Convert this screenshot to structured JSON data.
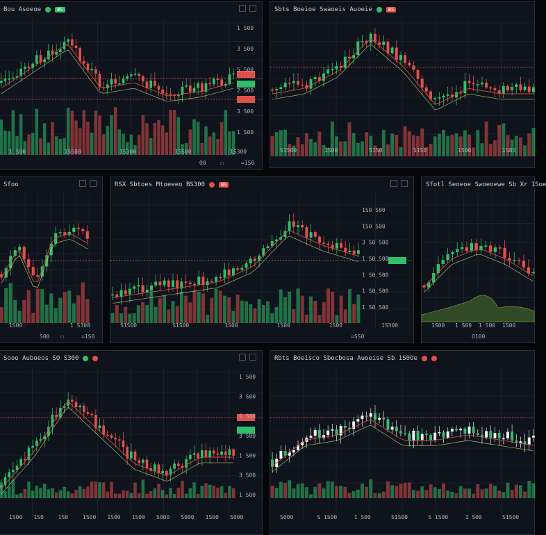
{
  "colors": {
    "up": "#2fbf6a",
    "down": "#e0504a",
    "bg": "#0f131b",
    "grid": "#232936",
    "wick_white": "#e6e8ec"
  },
  "panels": [
    {
      "id": "p1",
      "title": "Bou Asoeoe",
      "xlabels": [
        "1 S00",
        "15S00",
        "1S300",
        "15S00",
        "1S300"
      ],
      "ylabels": [
        "1 S00",
        "3 S00",
        "5 S00",
        "2 S00",
        "3 S00",
        "1 S00"
      ],
      "foot": [
        "O0",
        "☐",
        "=1S0"
      ]
    },
    {
      "id": "p2",
      "title": "Sbts  Boeioe Swaoeis Auoeie",
      "xlabels": [
        "S1S00",
        "1S00",
        "S1S0",
        "S1S0",
        "1S00",
        "1S80"
      ],
      "ylabels": [],
      "foot": []
    },
    {
      "id": "p3",
      "title": "Sfoo",
      "xlabels": [
        "1S00",
        "1 S300"
      ],
      "ylabels": [],
      "foot": [
        "S00",
        "☐",
        "=1S0"
      ]
    },
    {
      "id": "p4",
      "title": "RSX  Sbtoes Mtoeeeo BS300",
      "xlabels": [
        "S1S00",
        "S1S00",
        "1S00",
        "1S00",
        "1S00",
        "1S300"
      ],
      "ylabels": [
        "1S0 S00",
        "1S0 S00",
        "3 S0 S00",
        "1 S0 S00",
        "1 S0 S00",
        "1 S0 S00",
        "1 S0 S00"
      ],
      "foot": [
        "=SS0"
      ]
    },
    {
      "id": "p5",
      "title": "Sfotl  Seoeoe Swoeoewe  Sb  Xr 1Soe",
      "xlabels": [
        "1S00",
        "1 S00",
        "1 S00",
        "1S00"
      ],
      "ylabels": [],
      "foot": [
        "O100"
      ]
    },
    {
      "id": "p6",
      "title": "Sooe Auboeos  SO S300",
      "xlabels": [
        "1S00",
        "1S0",
        "1S0",
        "1S00",
        "1S00",
        "1S00",
        "S000",
        "S000",
        "1S00",
        "S000"
      ],
      "ylabels": [
        "1 S00",
        "3 S00",
        "5 S00",
        "3 S00",
        "1 S00",
        "3 S00",
        "1 S00"
      ],
      "foot": []
    },
    {
      "id": "p7",
      "title": "Rbts  Boeisco Sbocbosa Auoeise  Sb 1S0Oe",
      "xlabels": [
        "S000",
        "S 1S00",
        "1 S00",
        "S1S00",
        "S 1S00",
        "1 S00",
        "S1S00"
      ],
      "ylabels": [],
      "foot": []
    }
  ]
}
